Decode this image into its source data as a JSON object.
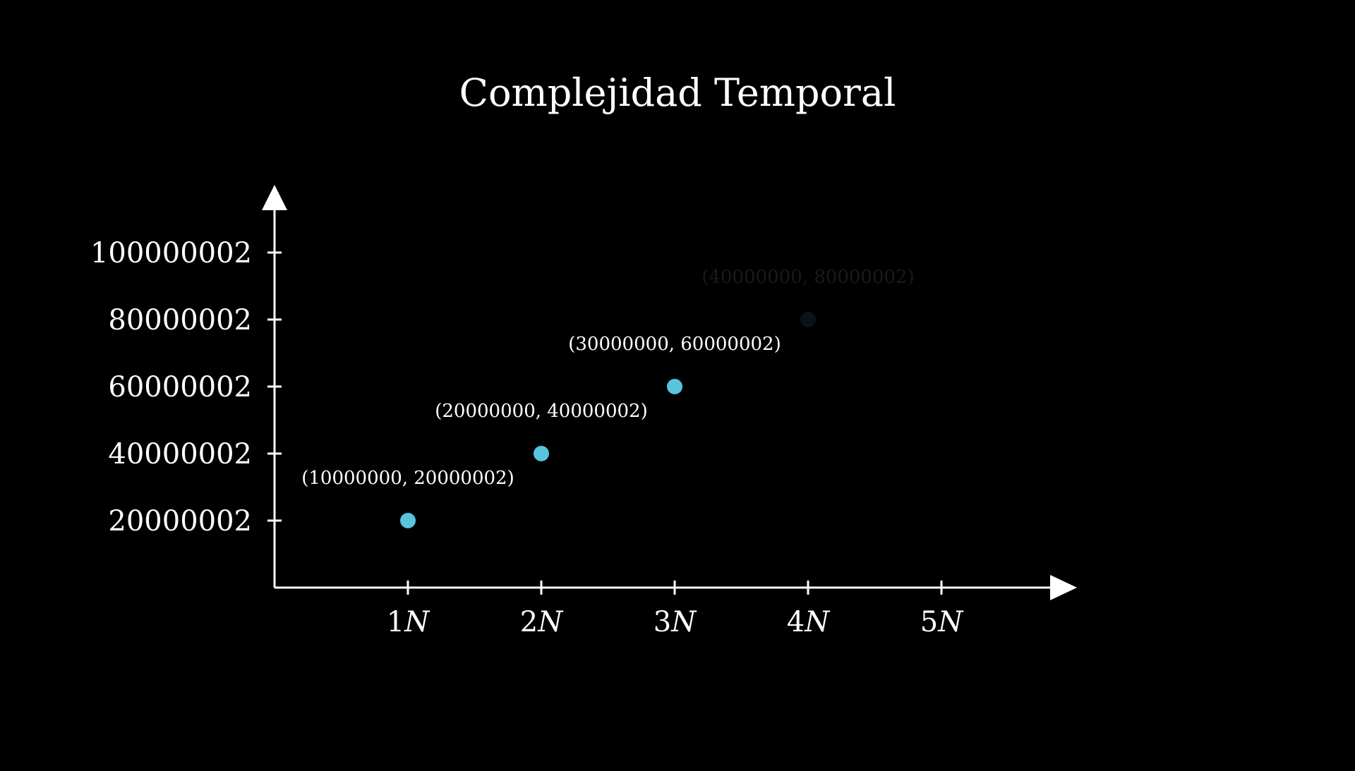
{
  "chart_data": {
    "type": "scatter",
    "title": "Complejidad Temporal",
    "xlabel": "",
    "ylabel": "",
    "x_tick_values": [
      1,
      2,
      3,
      4,
      5
    ],
    "x_tick_suffix": "N",
    "y_tick_values": [
      20000002,
      40000002,
      60000002,
      80000002,
      100000002
    ],
    "y_tick_labels": [
      "20000002",
      "40000002",
      "60000002",
      "80000002",
      "100000002"
    ],
    "xlim": [
      0,
      6
    ],
    "ylim": [
      0,
      120000002
    ],
    "grid": false,
    "legend": "none",
    "series": [
      {
        "points": [
          {
            "x": 1,
            "y": 20000002,
            "label": "(10000000, 20000002)",
            "visible": true
          },
          {
            "x": 2,
            "y": 40000002,
            "label": "(20000000, 40000002)",
            "visible": true
          },
          {
            "x": 3,
            "y": 60000002,
            "label": "(30000000, 60000002)",
            "visible": true
          },
          {
            "x": 4,
            "y": 80000002,
            "label": "(40000000, 80000002)",
            "visible": false
          }
        ]
      }
    ],
    "colors": {
      "background": "#000000",
      "axis": "#ffffff",
      "text": "#ffffff",
      "point": "#58c4dd",
      "faded_point": "#0a1418",
      "faded_label": "#1a1a1a"
    }
  }
}
